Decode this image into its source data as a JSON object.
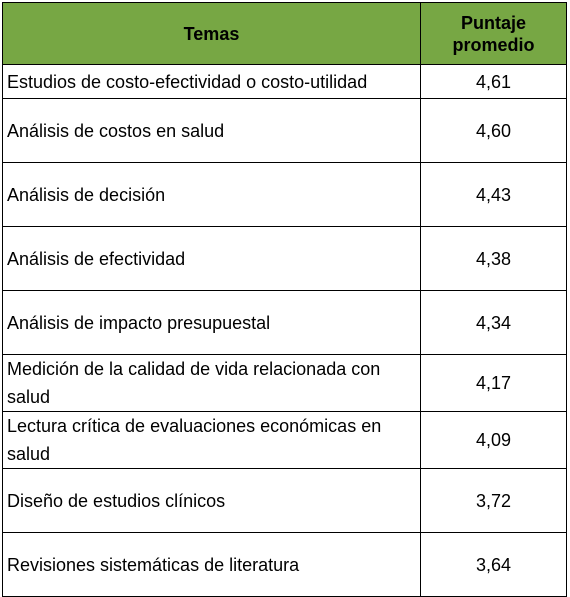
{
  "table": {
    "headers": {
      "topic": "Temas",
      "score_line1": "Puntaje",
      "score_line2": "promedio"
    },
    "rows": [
      {
        "topic": "Estudios de costo-efectividad o costo-utilidad",
        "score": "4,61",
        "lines": 2
      },
      {
        "topic": "Análisis de costos en salud",
        "score": "4,60",
        "lines": 1
      },
      {
        "topic": "Análisis de decisión",
        "score": "4,43",
        "lines": 1
      },
      {
        "topic": "Análisis de efectividad",
        "score": "4,38",
        "lines": 1
      },
      {
        "topic": "Análisis de impacto presupuestal",
        "score": "4,34",
        "lines": 1
      },
      {
        "topic": "Medición de la calidad de vida relacionada con salud",
        "score": "4,17",
        "lines": 2
      },
      {
        "topic": "Lectura crítica de evaluaciones económicas en salud",
        "score": "4,09",
        "lines": 2
      },
      {
        "topic": "Diseño de estudios clínicos",
        "score": "3,72",
        "lines": 1
      },
      {
        "topic": "Revisiones sistemáticas de literatura",
        "score": "3,64",
        "lines": 1
      }
    ],
    "header_color": "#77a744",
    "border_color": "#000000"
  }
}
